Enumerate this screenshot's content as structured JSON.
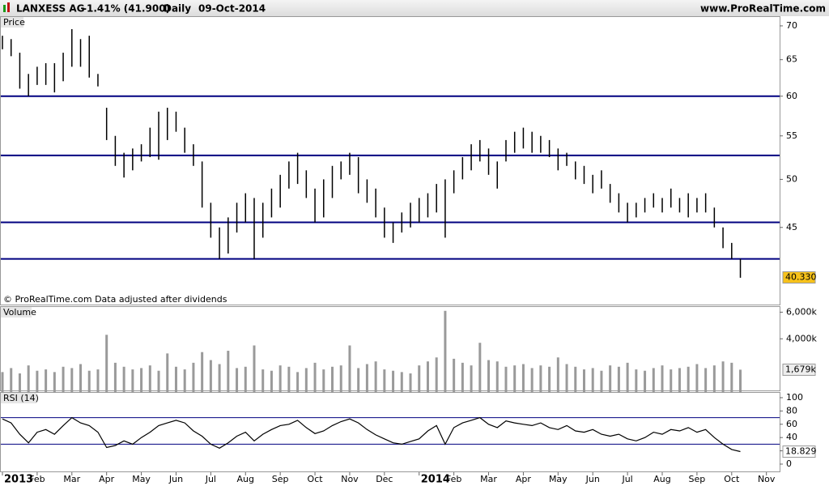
{
  "chart_data": {
    "type": "stock",
    "title": "LANXESS AG",
    "change": "-1.41% (41.900)",
    "period": "Daily",
    "date": "09-Oct-2014",
    "site": "www.ProRealTime.com",
    "note": "© ProRealTime.com  Data adjusted after dividends",
    "xlim": [
      0,
      22.38
    ],
    "xticks": [
      {
        "value": 0,
        "label": "2013"
      },
      {
        "value": 1,
        "label": "Feb"
      },
      {
        "value": 2,
        "label": "Mar"
      },
      {
        "value": 3,
        "label": "Apr"
      },
      {
        "value": 4,
        "label": "May"
      },
      {
        "value": 5,
        "label": "Jun"
      },
      {
        "value": 6,
        "label": "Jul"
      },
      {
        "value": 7,
        "label": "Aug"
      },
      {
        "value": 8,
        "label": "Sep"
      },
      {
        "value": 9,
        "label": "Oct"
      },
      {
        "value": 10,
        "label": "Nov"
      },
      {
        "value": 11,
        "label": "Dec"
      },
      {
        "value": 12,
        "label": "2014"
      },
      {
        "value": 13,
        "label": "Feb"
      },
      {
        "value": 14,
        "label": "Mar"
      },
      {
        "value": 15,
        "label": "Apr"
      },
      {
        "value": 16,
        "label": "May"
      },
      {
        "value": 17,
        "label": "Jun"
      },
      {
        "value": 18,
        "label": "Jul"
      },
      {
        "value": 19,
        "label": "Aug"
      },
      {
        "value": 20,
        "label": "Sep"
      },
      {
        "value": 21,
        "label": "Oct"
      },
      {
        "value": 22,
        "label": "Nov"
      }
    ],
    "x": [
      0,
      0.25,
      0.5,
      0.75,
      1,
      1.25,
      1.5,
      1.75,
      2,
      2.25,
      2.5,
      2.75,
      3,
      3.25,
      3.5,
      3.75,
      4,
      4.25,
      4.5,
      4.75,
      5,
      5.25,
      5.5,
      5.75,
      6,
      6.25,
      6.5,
      6.75,
      7,
      7.25,
      7.5,
      7.75,
      8,
      8.25,
      8.5,
      8.75,
      9,
      9.25,
      9.5,
      9.75,
      10,
      10.25,
      10.5,
      10.75,
      11,
      11.25,
      11.5,
      11.75,
      12,
      12.25,
      12.5,
      12.75,
      13,
      13.25,
      13.5,
      13.75,
      14,
      14.25,
      14.5,
      14.75,
      15,
      15.25,
      15.5,
      15.75,
      16,
      16.25,
      16.5,
      16.75,
      17,
      17.25,
      17.5,
      17.75,
      18,
      18.25,
      18.5,
      18.75,
      19,
      19.25,
      19.5,
      19.75,
      20,
      20.25,
      20.5,
      20.75,
      21,
      21.25
    ],
    "price": {
      "label": "Price",
      "log": true,
      "color": "#000000",
      "level_color": "#000080",
      "ylim": [
        38,
        71.5
      ],
      "yticks": [
        45,
        50,
        55,
        60,
        65,
        70
      ],
      "levels": [
        60,
        52.7,
        45.5,
        42
      ],
      "last": {
        "value": 40.33,
        "label": "40.330"
      },
      "high": [
        68.5,
        68,
        66,
        63,
        64,
        64.5,
        64.5,
        66,
        69.5,
        68,
        68.5,
        63,
        58.5,
        55,
        53,
        53.5,
        54,
        56,
        58,
        58.5,
        58,
        56,
        54,
        52,
        47.5,
        45,
        46,
        47.5,
        48.5,
        48,
        47.5,
        49,
        50.5,
        52,
        53,
        51,
        49,
        50,
        51.5,
        52,
        53,
        52.5,
        50,
        49,
        47,
        45.5,
        46.5,
        47.5,
        48,
        48.5,
        49.5,
        50,
        51,
        52.5,
        54,
        54.5,
        53.5,
        52,
        54.5,
        55.5,
        56,
        55.5,
        55,
        54.5,
        53.5,
        53,
        52,
        51.5,
        50.5,
        51,
        49.5,
        48.5,
        47.5,
        47.5,
        48,
        48.5,
        48,
        49,
        48,
        48.5,
        48,
        48.5,
        47,
        45,
        43.5,
        42
      ],
      "low": [
        66.5,
        65.5,
        61,
        60,
        61.5,
        61.5,
        60.5,
        62,
        64,
        64,
        62.5,
        61.3,
        54.5,
        51.5,
        50.2,
        51,
        52,
        52.5,
        52.2,
        54.5,
        55.5,
        53,
        51.5,
        47,
        44,
        42,
        42.5,
        44.5,
        45.5,
        42,
        44,
        46,
        47,
        49,
        49.5,
        48,
        45.5,
        46,
        48,
        50,
        50.5,
        48.5,
        47.5,
        46,
        44,
        43.5,
        44.5,
        45,
        45.5,
        46,
        46.5,
        44,
        48.5,
        50,
        51,
        52,
        50.5,
        49,
        52,
        53,
        53.5,
        53,
        53,
        52.5,
        51,
        51.5,
        50,
        49.5,
        48.5,
        49,
        47.5,
        46.5,
        45.5,
        46,
        46.5,
        47,
        46.5,
        47,
        46.5,
        46,
        46.5,
        46.5,
        45,
        43,
        42,
        40.3
      ]
    },
    "volume": {
      "label": "Volume",
      "color": "#9a9a9a",
      "ylim": [
        0,
        6450000
      ],
      "yticks": [
        {
          "value": 4000000,
          "label": "4,000k"
        },
        {
          "value": 6000000,
          "label": "6,000k"
        }
      ],
      "last": {
        "value": 1679000,
        "label": "1,679k"
      },
      "values": [
        1500000,
        1800000,
        1400000,
        2000000,
        1600000,
        1700000,
        1500000,
        1900000,
        1800000,
        2100000,
        1600000,
        1700000,
        4300000,
        2200000,
        1900000,
        1700000,
        1800000,
        2000000,
        1600000,
        2900000,
        1900000,
        1700000,
        2200000,
        3000000,
        2400000,
        2100000,
        3100000,
        1800000,
        1900000,
        3500000,
        1700000,
        1600000,
        2000000,
        1900000,
        1500000,
        1800000,
        2200000,
        1700000,
        1900000,
        2000000,
        3500000,
        1800000,
        2100000,
        2300000,
        1700000,
        1600000,
        1500000,
        1400000,
        2000000,
        2300000,
        2600000,
        6100000,
        2500000,
        2200000,
        2000000,
        3700000,
        2400000,
        2300000,
        1900000,
        2000000,
        2100000,
        1800000,
        2000000,
        1900000,
        2600000,
        2100000,
        1900000,
        1700000,
        1800000,
        1600000,
        2000000,
        1900000,
        2200000,
        1700000,
        1600000,
        1800000,
        2000000,
        1700000,
        1800000,
        1900000,
        2100000,
        1800000,
        2000000,
        2300000,
        2200000,
        1679000
      ]
    },
    "rsi": {
      "label": "RSI (14)",
      "color": "#000000",
      "level_color": "#000080",
      "ylim": [
        -11,
        108.5
      ],
      "yticks": [
        0,
        20,
        40,
        60,
        80,
        100
      ],
      "levels": [
        70,
        30
      ],
      "last": 18.829,
      "values": [
        68,
        62,
        45,
        32,
        48,
        52,
        45,
        58,
        70,
        62,
        58,
        48,
        25,
        28,
        35,
        30,
        40,
        48,
        58,
        62,
        66,
        62,
        50,
        42,
        30,
        24,
        32,
        42,
        48,
        35,
        45,
        52,
        58,
        60,
        66,
        55,
        46,
        50,
        58,
        64,
        68,
        62,
        52,
        44,
        38,
        32,
        30,
        34,
        38,
        50,
        58,
        30,
        55,
        62,
        66,
        70,
        60,
        55,
        65,
        62,
        60,
        58,
        62,
        55,
        52,
        58,
        50,
        48,
        52,
        45,
        42,
        45,
        38,
        35,
        40,
        48,
        45,
        52,
        50,
        55,
        48,
        52,
        40,
        30,
        22,
        18.829
      ]
    }
  }
}
